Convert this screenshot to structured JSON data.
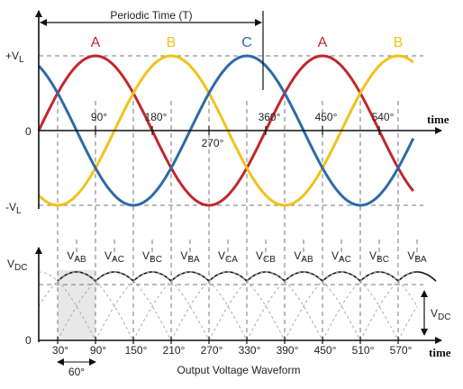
{
  "title_periodic": "Periodic Time (T)",
  "y_pos": "+V",
  "y_neg": "-V",
  "y_sub": "L",
  "zero_top": "0",
  "zero_bottom": "0",
  "time_top": "time",
  "time_bottom": "time",
  "vdc_left": "V",
  "vdc_right": "V",
  "vdc_sub": "DC",
  "upper_angles": [
    "90°",
    "180°",
    "270°",
    "360°",
    "450°",
    "540°"
  ],
  "phase_labels": [
    "A",
    "B",
    "C",
    "A",
    "B"
  ],
  "line_labels": [
    {
      "main": "V",
      "sub": "AB"
    },
    {
      "main": "V",
      "sub": "AC"
    },
    {
      "main": "V",
      "sub": "BC"
    },
    {
      "main": "V",
      "sub": "BA"
    },
    {
      "main": "V",
      "sub": "CA"
    },
    {
      "main": "V",
      "sub": "CB"
    },
    {
      "main": "V",
      "sub": "AB"
    },
    {
      "main": "V",
      "sub": "AC"
    },
    {
      "main": "V",
      "sub": "BC"
    },
    {
      "main": "V",
      "sub": "BA"
    }
  ],
  "lower_angles": [
    "30°",
    "90°",
    "150°",
    "210°",
    "270°",
    "330°",
    "390°",
    "450°",
    "510°",
    "570°"
  ],
  "span_label": "60°",
  "caption": "Output Voltage Waveform",
  "colors": {
    "phase_a": "#c0282e",
    "phase_b": "#f2c21b",
    "phase_c": "#2f6aa8",
    "axis": "#111111",
    "dash": "#777777",
    "highlight": "#e8e8e8"
  }
}
